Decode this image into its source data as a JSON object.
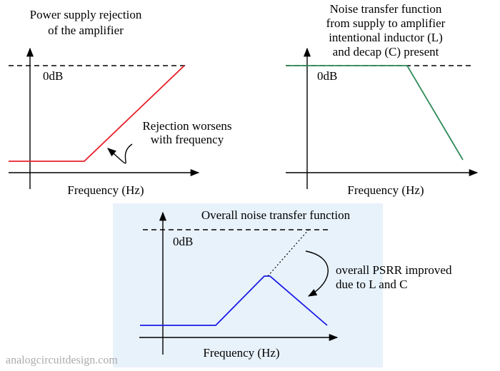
{
  "panels": [
    {
      "title_lines": [
        "Power supply rejection",
        "of the amplifier"
      ],
      "zero_db_label": "0dB",
      "annotation_lines": [
        "Rejection worsens",
        "with frequency"
      ],
      "x_axis_label": "Frequency (Hz)"
    },
    {
      "title_lines": [
        "Noise transfer function",
        "from supply to amplifier",
        "intentional inductor (L)",
        "and decap (C) present"
      ],
      "zero_db_label": "0dB",
      "x_axis_label": "Frequency (Hz)"
    },
    {
      "title_lines": [
        "Overall noise transfer function"
      ],
      "zero_db_label": "0dB",
      "annotation_lines": [
        "overall PSRR improved",
        "due to L and C"
      ],
      "x_axis_label": "Frequency (Hz)"
    }
  ],
  "watermark": "analogcircuitdesign.com"
}
